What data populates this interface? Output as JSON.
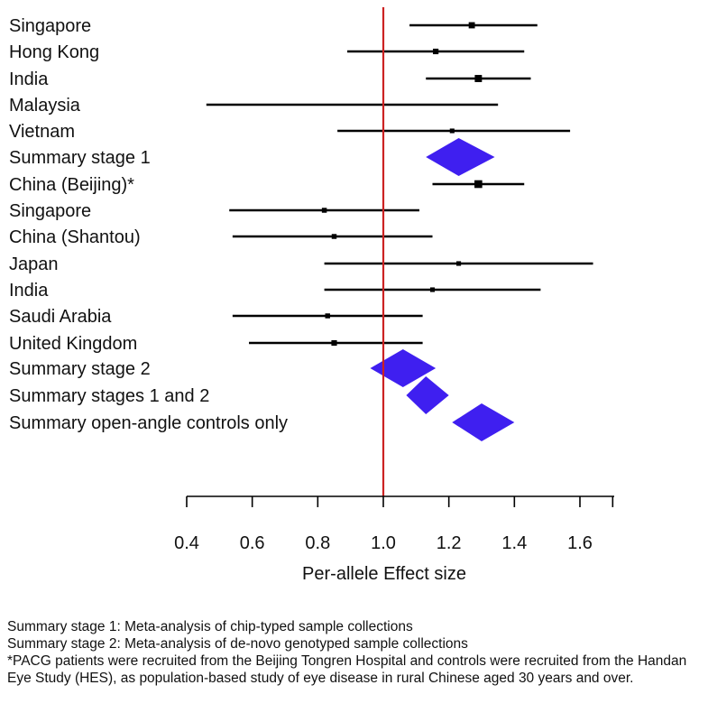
{
  "chart_data": {
    "type": "forest",
    "title": "",
    "xlabel": "Per-allele Effect size",
    "ylabel": "",
    "xlim": [
      0.4,
      1.7
    ],
    "x_ticks": [
      "0.4",
      "0.6",
      "0.8",
      "1.0",
      "1.2",
      "1.4",
      "1.6"
    ],
    "reference_line": 1.0,
    "reference_color": "#cc2222",
    "point_color": "#000000",
    "summary_color": "#3f1ff0",
    "grid": false,
    "rows": [
      {
        "label": "Singapore",
        "kind": "study",
        "estimate": 1.27,
        "lower": 1.08,
        "upper": 1.47,
        "weight": 0.55
      },
      {
        "label": "Hong Kong",
        "kind": "study",
        "estimate": 1.16,
        "lower": 0.89,
        "upper": 1.43,
        "weight": 0.45
      },
      {
        "label": "India",
        "kind": "study",
        "estimate": 1.29,
        "lower": 1.13,
        "upper": 1.45,
        "weight": 0.7
      },
      {
        "label": "Malaysia",
        "kind": "study",
        "estimate": null,
        "lower": 0.46,
        "upper": 1.35,
        "weight": 0
      },
      {
        "label": "Vietnam",
        "kind": "study",
        "estimate": 1.21,
        "lower": 0.86,
        "upper": 1.57,
        "weight": 0.3
      },
      {
        "label": "Summary stage 1",
        "kind": "summary",
        "estimate": 1.23,
        "lower": 1.13,
        "upper": 1.34
      },
      {
        "label": "China (Beijing)*",
        "kind": "study",
        "estimate": 1.29,
        "lower": 1.15,
        "upper": 1.43,
        "weight": 0.8
      },
      {
        "label": "Singapore",
        "kind": "study",
        "estimate": 0.82,
        "lower": 0.53,
        "upper": 1.11,
        "weight": 0.35
      },
      {
        "label": "China (Shantou)",
        "kind": "study",
        "estimate": 0.85,
        "lower": 0.54,
        "upper": 1.15,
        "weight": 0.35
      },
      {
        "label": "Japan",
        "kind": "study",
        "estimate": 1.23,
        "lower": 0.82,
        "upper": 1.64,
        "weight": 0.3
      },
      {
        "label": "India",
        "kind": "study",
        "estimate": 1.15,
        "lower": 0.82,
        "upper": 1.48,
        "weight": 0.3
      },
      {
        "label": "Saudi Arabia",
        "kind": "study",
        "estimate": 0.83,
        "lower": 0.54,
        "upper": 1.12,
        "weight": 0.35
      },
      {
        "label": "United Kingdom",
        "kind": "study",
        "estimate": 0.85,
        "lower": 0.59,
        "upper": 1.12,
        "weight": 0.45
      },
      {
        "label": "Summary stage 2",
        "kind": "summary",
        "estimate": 1.06,
        "lower": 0.96,
        "upper": 1.16
      },
      {
        "label": "Summary stages 1 and 2",
        "kind": "summary",
        "estimate": 1.13,
        "lower": 1.07,
        "upper": 1.2
      },
      {
        "label": "Summary open-angle controls only",
        "kind": "summary",
        "estimate": 1.3,
        "lower": 1.21,
        "upper": 1.4
      }
    ]
  },
  "footnotes": {
    "line1": "Summary stage 1: Meta-analysis of chip-typed sample collections",
    "line2": "Summary stage 2: Meta-analysis of de-novo genotyped sample collections",
    "line3": "*PACG patients were recruited from the Beijing Tongren Hospital and controls were recruited from the Handan Eye Study (HES), as population-based study of eye disease in rural Chinese aged 30 years and over."
  }
}
